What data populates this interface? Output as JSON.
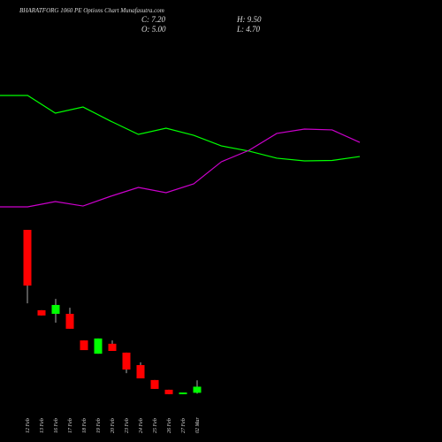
{
  "chart_data": [
    {
      "type": "candlestick",
      "title": "BHARATFORG 1060 PE Options Chart Munafasutra.com",
      "stats": [
        "C: 7.20",
        "O: 5.00",
        "H: 9.50",
        "L: 4.70"
      ],
      "categories": [
        "12 Feb",
        "13 Feb",
        "16 Feb",
        "17 Feb",
        "18 Feb",
        "19 Feb",
        "20 Feb",
        "23 Feb",
        "24 Feb",
        "25 Feb",
        "26 Feb",
        "27 Feb",
        "02 Mar"
      ],
      "open": [
        63.8,
        34.8,
        33.5,
        33.5,
        23.9,
        19.1,
        22.7,
        19.5,
        15.0,
        9.6,
        6.1,
        4.5,
        5.0
      ],
      "high": [
        63.8,
        34.8,
        38.9,
        35.7,
        23.9,
        24.6,
        23.9,
        19.5,
        16.0,
        9.6,
        6.1,
        5.1,
        9.5
      ],
      "low": [
        37.3,
        32.9,
        30.3,
        28.1,
        20.4,
        19.1,
        20.1,
        12.1,
        10.2,
        6.4,
        4.5,
        4.5,
        4.7
      ],
      "close": [
        43.7,
        32.9,
        36.7,
        28.1,
        20.4,
        24.6,
        20.1,
        13.4,
        10.2,
        6.4,
        4.5,
        5.1,
        7.2
      ],
      "up_color": "#00ff00",
      "down_color": "#ff0000",
      "wick_color": "#aaaaaa",
      "ylim": [
        0,
        67
      ]
    },
    {
      "type": "line",
      "series": [
        {
          "color": "#00ff00",
          "values": [
            88.75,
            88.75,
            76.25,
            80.6,
            70.6,
            61.25,
            65.6,
            60.6,
            53.1,
            49.4,
            44.4,
            42.5,
            42.8,
            45.6
          ]
        },
        {
          "color": "#cc00cc",
          "values": [
            10,
            10,
            13.75,
            10.6,
            17.5,
            23.75,
            20,
            26.25,
            41.9,
            50,
            61.9,
            65,
            64.4,
            55.6
          ]
        }
      ],
      "ylim": [
        0,
        100
      ]
    }
  ]
}
